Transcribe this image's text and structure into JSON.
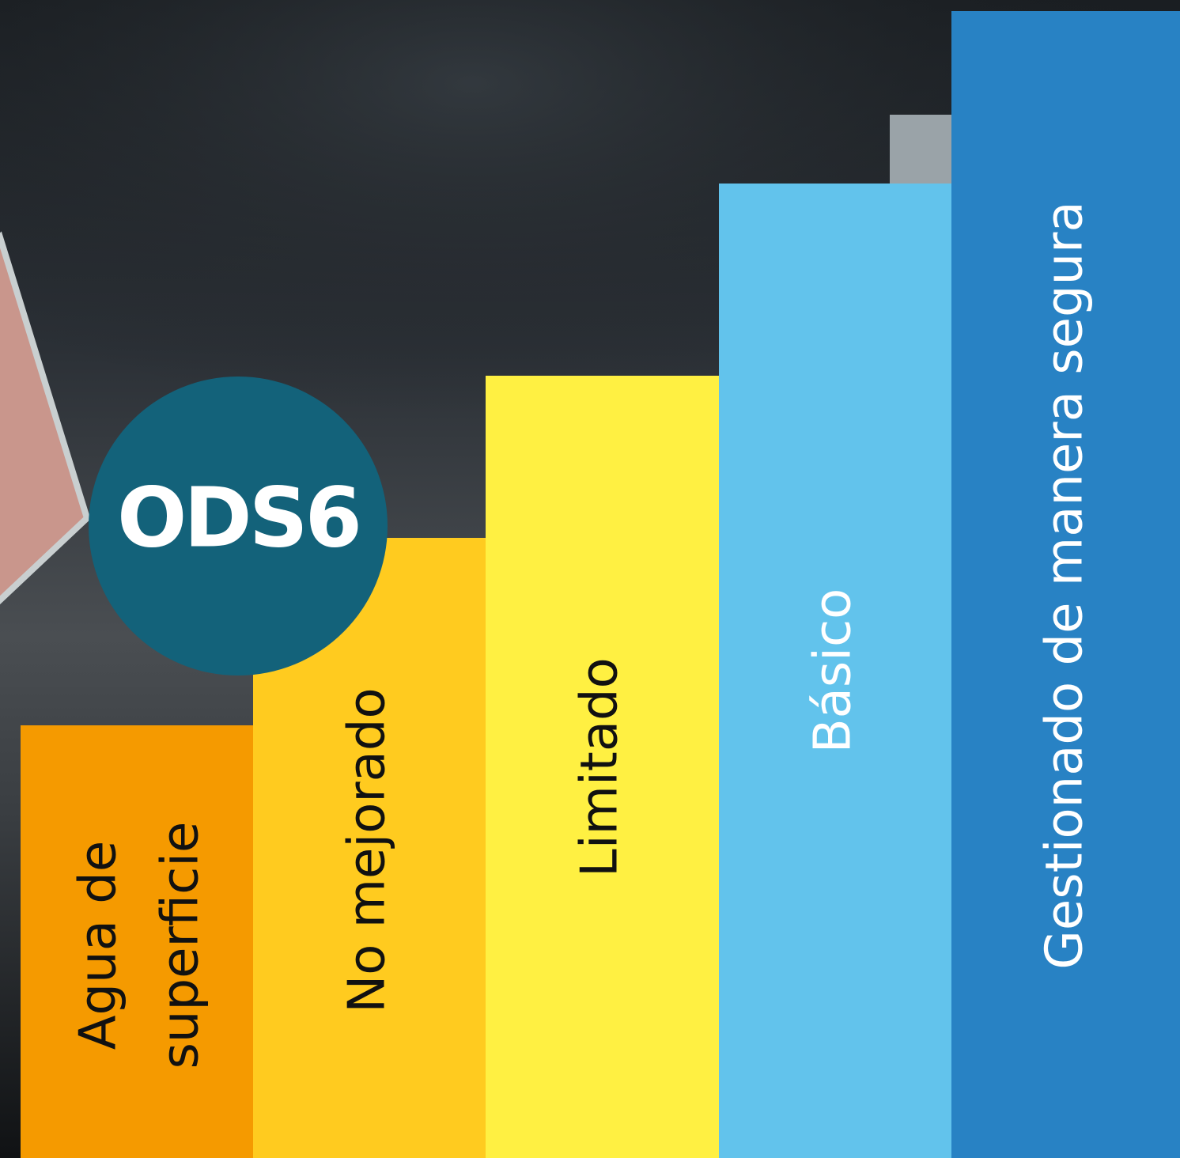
{
  "badge": "ODS6",
  "steps": [
    {
      "label_lines": [
        "Agua de",
        "superficie"
      ]
    },
    {
      "label_lines": [
        "No mejorado"
      ]
    },
    {
      "label_lines": [
        "Limitado"
      ]
    },
    {
      "label_lines": [
        "Básico"
      ]
    },
    {
      "label_lines": [
        "Gestionado de manera segura"
      ]
    }
  ]
}
